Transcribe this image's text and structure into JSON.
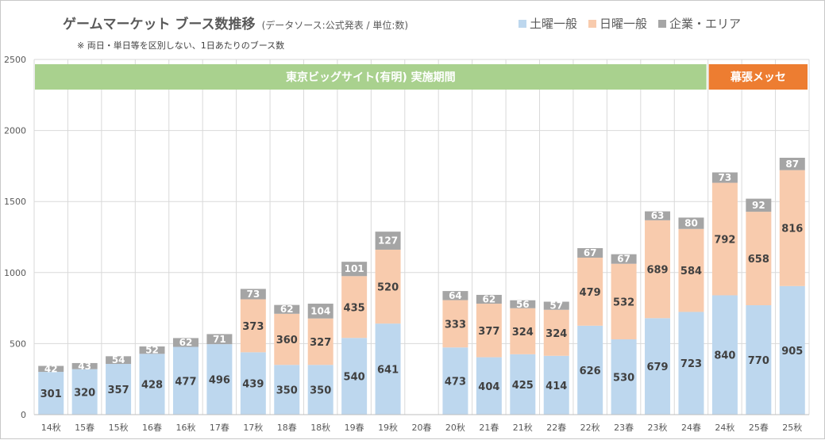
{
  "chart_data": {
    "type": "bar",
    "stacked": true,
    "title": "ゲームマーケット ブース数推移",
    "subtitle": "(データソース:公式発表 / 単位:数)",
    "note": "※ 両日・単日等を区別しない、1日あたりのブース数",
    "categories": [
      "14秋",
      "15春",
      "15秋",
      "16春",
      "16秋",
      "17春",
      "17秋",
      "18春",
      "18秋",
      "19春",
      "19秋",
      "20春",
      "20秋",
      "21春",
      "21秋",
      "22春",
      "22秋",
      "23春",
      "23秋",
      "24春",
      "24秋",
      "25春",
      "25秋"
    ],
    "series": [
      {
        "name": "土曜一般",
        "color": "#bdd7ee",
        "values": [
          301,
          320,
          357,
          428,
          477,
          496,
          439,
          350,
          350,
          540,
          641,
          null,
          473,
          404,
          425,
          414,
          626,
          530,
          679,
          723,
          840,
          770,
          905
        ]
      },
      {
        "name": "日曜一般",
        "color": "#f8cbad",
        "values": [
          null,
          null,
          null,
          null,
          null,
          null,
          373,
          360,
          327,
          435,
          520,
          null,
          333,
          377,
          324,
          324,
          479,
          532,
          689,
          584,
          792,
          658,
          816
        ]
      },
      {
        "name": "企業・エリア",
        "color": "#a5a5a5",
        "values": [
          42,
          43,
          54,
          52,
          62,
          71,
          73,
          62,
          104,
          101,
          127,
          null,
          64,
          62,
          56,
          57,
          67,
          67,
          63,
          80,
          73,
          92,
          87
        ]
      }
    ],
    "ylim": [
      0,
      2500
    ],
    "yticks": [
      "0",
      "500",
      "1000",
      "1500",
      "2000",
      "2500"
    ],
    "grid": true,
    "legend_position": "top-right",
    "venue_bands": [
      {
        "label": "東京ビッグサイト(有明) 実施期間",
        "from": "14秋",
        "to": "24春",
        "color": "#a9d18e"
      },
      {
        "label": "幕張メッセ",
        "from": "24秋",
        "to": "25秋",
        "color": "#ed7d31"
      }
    ]
  }
}
